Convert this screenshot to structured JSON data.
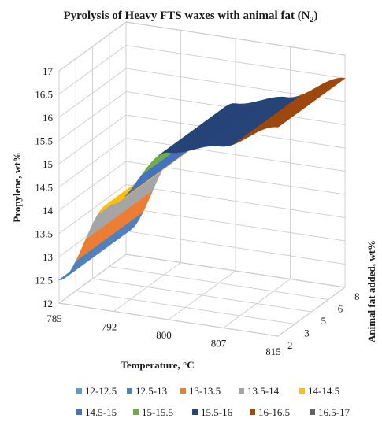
{
  "chart_data": {
    "type": "surface",
    "title_main": "Pyrolysis  of Heavy  FTS waxes with animal  fat (N",
    "title_sub": "2",
    "title_end": ")",
    "zlabel": "Propylene, wt%",
    "xlabel": "Temperature, °C",
    "ylabel": "Animal fat added, wt%",
    "x_ticks": [
      "785",
      "792",
      "800",
      "807",
      "815"
    ],
    "y_ticks": [
      "2",
      "3",
      "5",
      "6",
      "8"
    ],
    "z_ticks": [
      "12",
      "12.5",
      "13",
      "13.5",
      "14",
      "14.5",
      "15",
      "15.5",
      "16",
      "16.5",
      "17"
    ],
    "zlim": [
      12,
      17
    ],
    "x": [
      785,
      792,
      800,
      807,
      815
    ],
    "y": [
      2,
      3,
      5,
      6,
      8
    ],
    "z_along_temperature": [
      12.5,
      14.3,
      15.6,
      15.9,
      16.5
    ],
    "bands": [
      {
        "name": "12-12.5",
        "color": "#5b9bd5"
      },
      {
        "name": "12.5-13",
        "color": "#4f81bd"
      },
      {
        "name": "13-13.5",
        "color": "#ed7d31"
      },
      {
        "name": "13.5-14",
        "color": "#a5a5a5"
      },
      {
        "name": "14-14.5",
        "color": "#ffc000"
      },
      {
        "name": "14.5-15",
        "color": "#4472c4"
      },
      {
        "name": "15-15.5",
        "color": "#70ad47"
      },
      {
        "name": "15.5-16",
        "color": "#264478"
      },
      {
        "name": "16-16.5",
        "color": "#9e480e"
      },
      {
        "name": "16.5-17",
        "color": "#636363"
      }
    ],
    "grid": true,
    "legend_position": "bottom"
  }
}
